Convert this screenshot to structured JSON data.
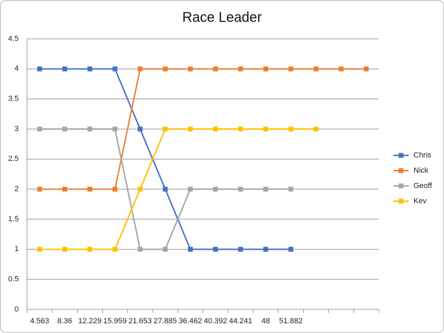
{
  "chart_data": {
    "type": "line",
    "title": "Race Leader",
    "categories": [
      "4.563",
      "8.36",
      "12.229",
      "15.959",
      "21.653",
      "27.885",
      "36.462",
      "40.392",
      "44.241",
      "48",
      "51.882",
      null,
      null,
      null
    ],
    "series": [
      {
        "name": "Chris",
        "color": "#4472c4",
        "values": [
          4,
          4,
          4,
          4,
          3,
          2,
          1,
          1,
          1,
          1,
          1,
          null,
          null,
          null
        ]
      },
      {
        "name": "Nick",
        "color": "#ed7d31",
        "values": [
          2,
          2,
          2,
          2,
          4,
          4,
          4,
          4,
          4,
          4,
          4,
          4,
          4,
          4
        ]
      },
      {
        "name": "Geoff",
        "color": "#a5a5a5",
        "values": [
          3,
          3,
          3,
          3,
          1,
          1,
          2,
          2,
          2,
          2,
          2,
          null,
          null,
          null
        ]
      },
      {
        "name": "Kev",
        "color": "#ffc000",
        "values": [
          1,
          1,
          1,
          1,
          2,
          3,
          3,
          3,
          3,
          3,
          3,
          3,
          null,
          null
        ]
      }
    ],
    "ylim": [
      0,
      4.5
    ],
    "yticks": [
      0,
      0.5,
      1,
      1.5,
      2,
      2.5,
      3,
      3.5,
      4,
      4.5
    ],
    "grid": true,
    "legend": "right"
  }
}
